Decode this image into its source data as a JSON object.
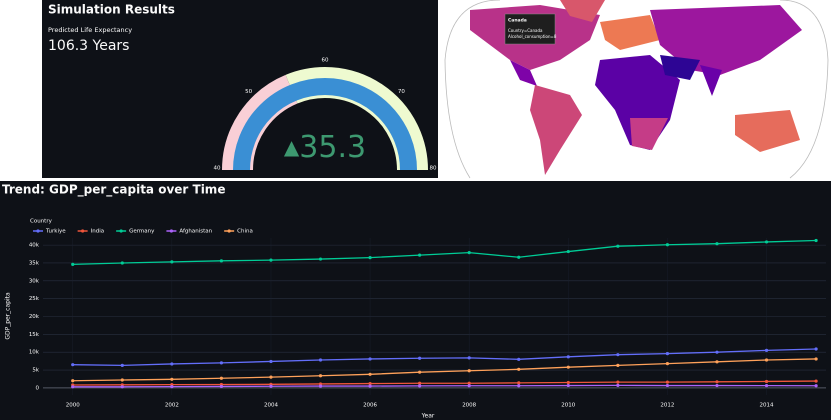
{
  "panel": {
    "title": "Simulation Results",
    "subtitle": "Predicted Life Expectancy",
    "value": 106.3,
    "value_label": "106.3 Years"
  },
  "gauge": {
    "range": [
      40,
      80
    ],
    "ticks": [
      40,
      50,
      60,
      70,
      80
    ],
    "bar_color": "#3a8fd4",
    "steps": [
      {
        "range": [
          40,
          55
        ],
        "color": "#f9cfd6"
      },
      {
        "range": [
          55,
          80
        ],
        "color": "#eefad0"
      }
    ],
    "delta": {
      "symbol": "▲",
      "value": 35.3,
      "color": "#3d9970"
    }
  },
  "map": {
    "tooltip": [
      "Canada",
      "Country=Canada",
      "Alcohol_consumption=8"
    ]
  },
  "chart_data": {
    "type": "line",
    "title": "Trend: GDP_per_capita over Time",
    "legend_title": "Country",
    "x_label": "Year",
    "y_label": "GDP_per_capita",
    "x": [
      2000,
      2001,
      2002,
      2003,
      2004,
      2005,
      2006,
      2007,
      2008,
      2009,
      2010,
      2011,
      2012,
      2013,
      2014,
      2015
    ],
    "series": [
      {
        "name": "Turkiye",
        "color": "#636efa",
        "values": [
          6500,
          6300,
          6700,
          7000,
          7400,
          7800,
          8100,
          8300,
          8400,
          8000,
          8700,
          9300,
          9600,
          10000,
          10500,
          10900
        ]
      },
      {
        "name": "India",
        "color": "#ef553b",
        "values": [
          800,
          850,
          900,
          950,
          1000,
          1100,
          1200,
          1300,
          1300,
          1400,
          1500,
          1600,
          1600,
          1700,
          1800,
          1900
        ]
      },
      {
        "name": "Germany",
        "color": "#00cc96",
        "values": [
          34600,
          35000,
          35300,
          35600,
          35800,
          36100,
          36500,
          37200,
          37900,
          36600,
          38200,
          39700,
          40100,
          40400,
          40900,
          41300
        ]
      },
      {
        "name": "Afghanistan",
        "color": "#ab63fa",
        "values": [
          300,
          300,
          350,
          400,
          450,
          500,
          500,
          550,
          600,
          600,
          650,
          700,
          650,
          650,
          620,
          600
        ]
      },
      {
        "name": "China",
        "color": "#ffa15a",
        "values": [
          2000,
          2200,
          2400,
          2700,
          3000,
          3400,
          3800,
          4400,
          4800,
          5200,
          5800,
          6300,
          6800,
          7300,
          7800,
          8100
        ]
      }
    ],
    "xlim": [
      1999.4,
      2015.2
    ],
    "xticks": [
      2000,
      2002,
      2004,
      2006,
      2008,
      2010,
      2012,
      2014
    ],
    "ylim": [
      -2000,
      42000
    ],
    "yticks": [
      0,
      {
        "value": 5000,
        "label": "5k"
      },
      {
        "value": 10000,
        "label": "10k"
      },
      {
        "value": 15000,
        "label": "15k"
      },
      {
        "value": 20000,
        "label": "20k"
      },
      {
        "value": 25000,
        "label": "25k"
      },
      {
        "value": 30000,
        "label": "30k"
      },
      {
        "value": 35000,
        "label": "35k"
      },
      {
        "value": 40000,
        "label": "40k"
      }
    ],
    "grid": true
  }
}
